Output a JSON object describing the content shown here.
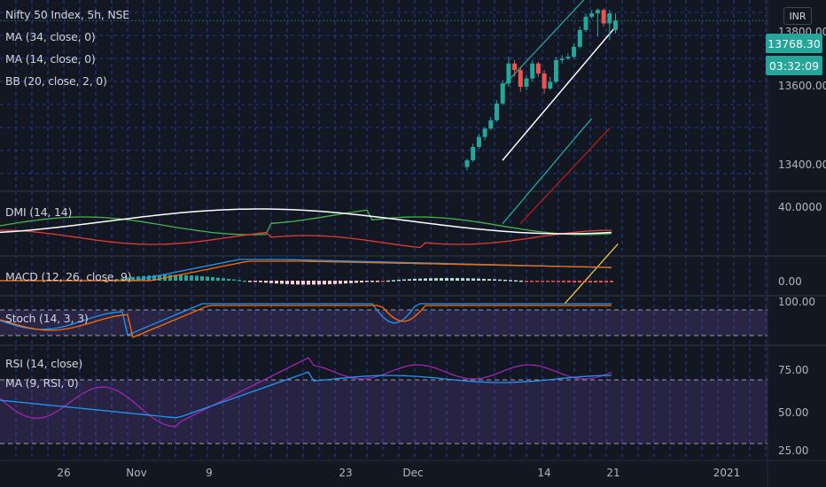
{
  "header": {
    "symbol_title": "Nifty 50 Index, 5h, NSE",
    "currency": "INR",
    "indicators": [
      "MA (34, close, 0)",
      "MA (14, close, 0)",
      "BB (20, close, 2, 0)"
    ]
  },
  "price_badges": {
    "last_price": "13768.30",
    "countdown": "03:32:09",
    "last_price_color": "#26a69a"
  },
  "panes": {
    "price": {
      "scale_labels": [
        "13800.00",
        "13600.00",
        "13400.00"
      ]
    },
    "dmi": {
      "title": "DMI (14, 14)",
      "scale_labels": [
        "40.0000"
      ]
    },
    "macd": {
      "title": "MACD (12, 26, close, 9)",
      "scale_labels": [
        "0.00"
      ]
    },
    "stoch": {
      "title": "Stoch (14, 3, 3)",
      "scale_labels": [
        "100.00"
      ]
    },
    "rsi": {
      "title": "RSI (14, close)",
      "ma_title": "MA (9, RSI, 0)",
      "scale_labels": [
        "75.00",
        "50.00",
        "25.00"
      ]
    }
  },
  "time_axis": {
    "labels": [
      "26",
      "Nov",
      "9",
      "23",
      "Dec",
      "14",
      "21",
      "2021"
    ]
  },
  "colors": {
    "background": "#131722",
    "grid": "#2962ff",
    "up_candle": "#26a69a",
    "down_candle": "#ef5350",
    "ma34": "#b71c1c",
    "ma14": "#f9c740",
    "bb": "#26a69a",
    "bb_mid": "#ffffff",
    "dmi_plus": "#4caf50",
    "dmi_minus": "#e53935",
    "adx": "#ffffff",
    "macd": "#2196f3",
    "signal": "#ff6d00",
    "stoch_k": "#2196f3",
    "stoch_d": "#ff6d00",
    "rsi": "#9c27b0",
    "rsi_ma": "#2196f3",
    "band_fill": "#7e57c2"
  },
  "chart_data": {
    "type": "candlestick",
    "candles": [
      {
        "o": 13330,
        "c": 13350,
        "h": 13355,
        "l": 13320
      },
      {
        "o": 13350,
        "c": 13390,
        "h": 13400,
        "l": 13345
      },
      {
        "o": 13390,
        "c": 13420,
        "h": 13430,
        "l": 13385
      },
      {
        "o": 13420,
        "c": 13445,
        "h": 13450,
        "l": 13410
      },
      {
        "o": 13445,
        "c": 13470,
        "h": 13480,
        "l": 13440
      },
      {
        "o": 13470,
        "c": 13520,
        "h": 13530,
        "l": 13465
      },
      {
        "o": 13520,
        "c": 13580,
        "h": 13590,
        "l": 13515
      },
      {
        "o": 13580,
        "c": 13640,
        "h": 13660,
        "l": 13570
      },
      {
        "o": 13640,
        "c": 13620,
        "h": 13650,
        "l": 13600
      },
      {
        "o": 13620,
        "c": 13570,
        "h": 13630,
        "l": 13555
      },
      {
        "o": 13570,
        "c": 13595,
        "h": 13605,
        "l": 13560
      },
      {
        "o": 13595,
        "c": 13640,
        "h": 13650,
        "l": 13585
      },
      {
        "o": 13640,
        "c": 13610,
        "h": 13645,
        "l": 13600
      },
      {
        "o": 13610,
        "c": 13565,
        "h": 13620,
        "l": 13550
      },
      {
        "o": 13565,
        "c": 13585,
        "h": 13600,
        "l": 13560
      },
      {
        "o": 13585,
        "c": 13650,
        "h": 13660,
        "l": 13580
      },
      {
        "o": 13650,
        "c": 13655,
        "h": 13665,
        "l": 13640
      },
      {
        "o": 13655,
        "c": 13660,
        "h": 13670,
        "l": 13650
      },
      {
        "o": 13660,
        "c": 13690,
        "h": 13700,
        "l": 13655
      },
      {
        "o": 13690,
        "c": 13740,
        "h": 13750,
        "l": 13685
      },
      {
        "o": 13740,
        "c": 13780,
        "h": 13790,
        "l": 13735
      },
      {
        "o": 13780,
        "c": 13790,
        "h": 13800,
        "l": 13775
      },
      {
        "o": 13790,
        "c": 13800,
        "h": 13805,
        "l": 13720
      },
      {
        "o": 13800,
        "c": 13760,
        "h": 13805,
        "l": 13750
      },
      {
        "o": 13760,
        "c": 13790,
        "h": 13800,
        "l": 13710
      },
      {
        "o": 13740,
        "c": 13768.3,
        "h": 13790,
        "l": 13730
      }
    ]
  }
}
